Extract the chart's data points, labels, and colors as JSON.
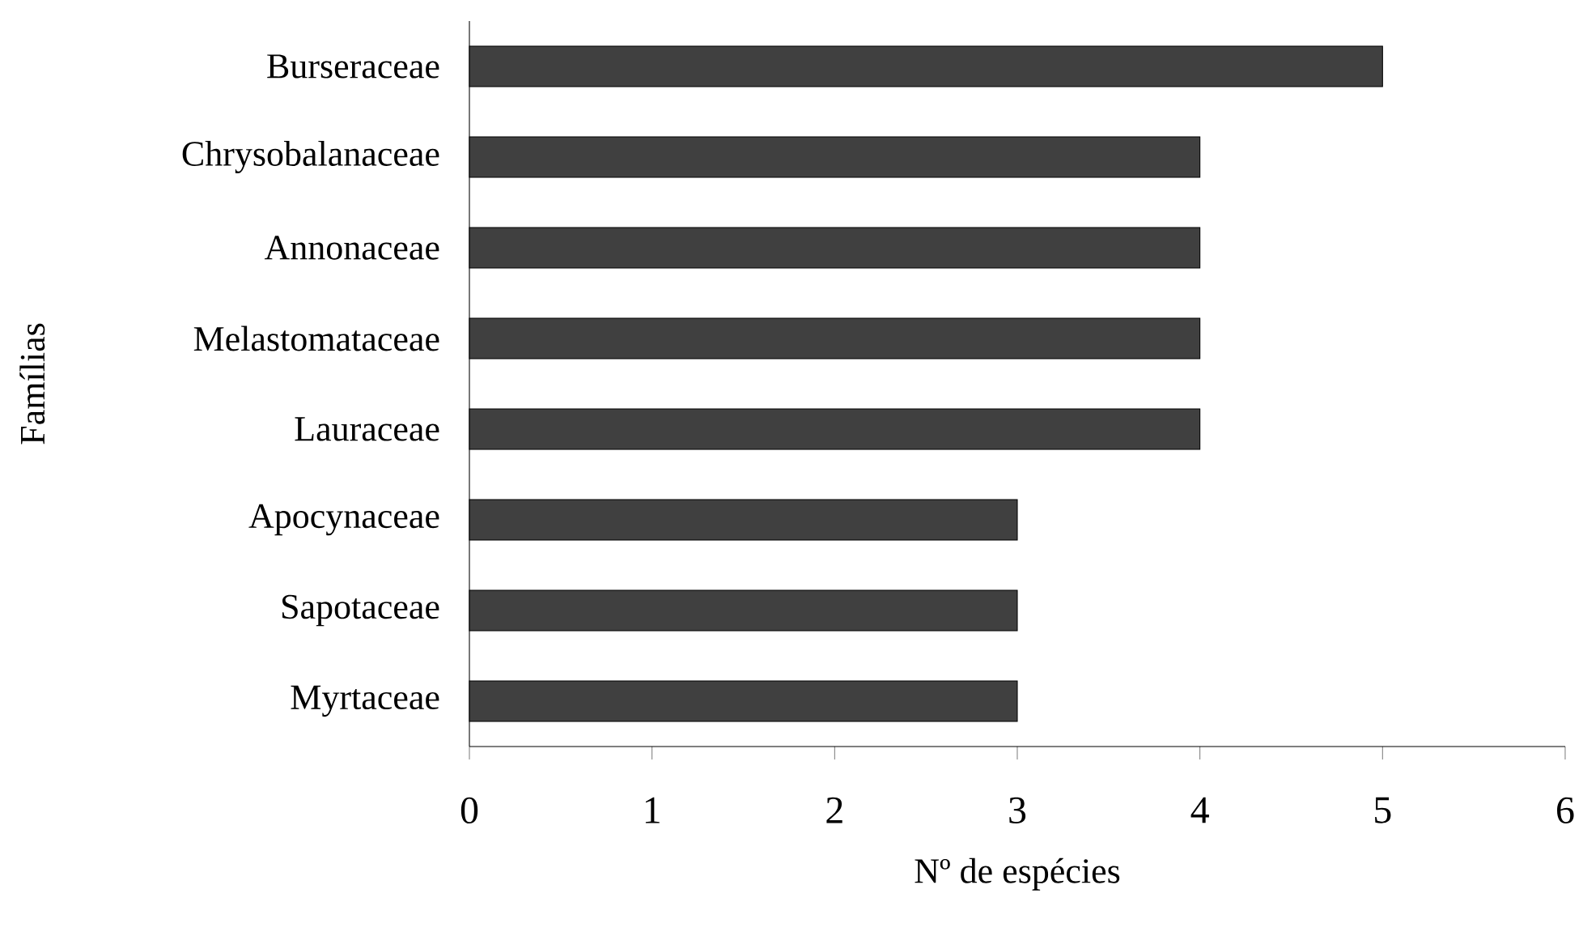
{
  "chart_data": {
    "type": "bar",
    "orientation": "horizontal",
    "xlabel": "Nº de espécies",
    "ylabel": "Famílias",
    "categories": [
      "Burseraceae",
      "Chrysobalanaceae",
      "Annonaceae",
      "Melastomataceae",
      "Lauraceae",
      "Apocynaceae",
      "Sapotaceae",
      "Myrtaceae"
    ],
    "values": [
      5,
      4,
      4,
      4,
      4,
      3,
      3,
      3
    ],
    "color": "#404040",
    "xlim": [
      0,
      6
    ],
    "xticks": [
      0,
      1,
      2,
      3,
      4,
      5,
      6
    ]
  }
}
